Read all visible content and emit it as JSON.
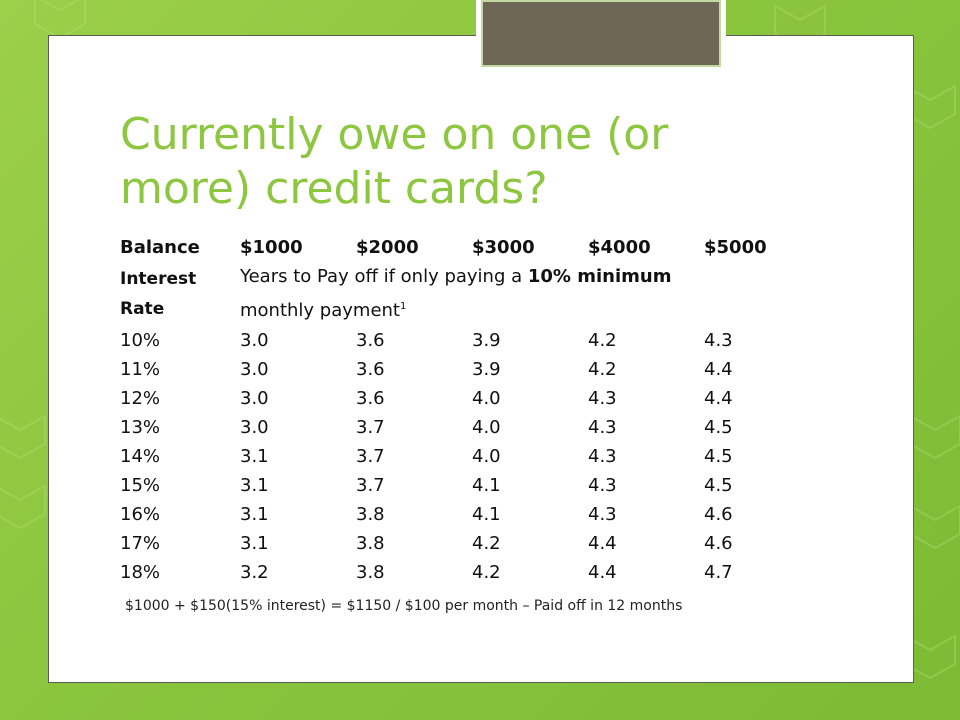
{
  "slide": {
    "title": "Currently owe on one (or more) credit cards?",
    "table": {
      "header_label": "Balance",
      "balances": [
        "$1000",
        "$2000",
        "$3000",
        "$4000",
        "$5000"
      ],
      "interest_label_line1": "Interest",
      "interest_label_line2": "Rate",
      "description_part1": "Years to Pay off if only paying a ",
      "description_bold": "10% minimum",
      "description_line2": "monthly payment",
      "description_sup": "1",
      "rows": [
        {
          "rate": "10%",
          "values": [
            "3.0",
            "3.6",
            "3.9",
            "4.2",
            "4.3"
          ]
        },
        {
          "rate": "11%",
          "values": [
            "3.0",
            "3.6",
            "3.9",
            "4.2",
            "4.4"
          ]
        },
        {
          "rate": "12%",
          "values": [
            "3.0",
            "3.6",
            "4.0",
            "4.3",
            "4.4"
          ]
        },
        {
          "rate": "13%",
          "values": [
            "3.0",
            "3.7",
            "4.0",
            "4.3",
            "4.5"
          ]
        },
        {
          "rate": "14%",
          "values": [
            "3.1",
            "3.7",
            "4.0",
            "4.3",
            "4.5"
          ]
        },
        {
          "rate": "15%",
          "values": [
            "3.1",
            "3.7",
            "4.1",
            "4.3",
            "4.5"
          ]
        },
        {
          "rate": "16%",
          "values": [
            "3.1",
            "3.8",
            "4.1",
            "4.3",
            "4.6"
          ]
        },
        {
          "rate": "17%",
          "values": [
            "3.1",
            "3.8",
            "4.2",
            "4.4",
            "4.6"
          ]
        },
        {
          "rate": "18%",
          "values": [
            "3.2",
            "3.8",
            "4.2",
            "4.4",
            "4.7"
          ]
        }
      ]
    },
    "footnote": "$1000 + $150(15% interest) = $1150 / $100 per month – Paid off in 12 months"
  },
  "colors": {
    "title": "#8dc63f",
    "background": "#8cc63f",
    "tab": "#6e6656"
  }
}
